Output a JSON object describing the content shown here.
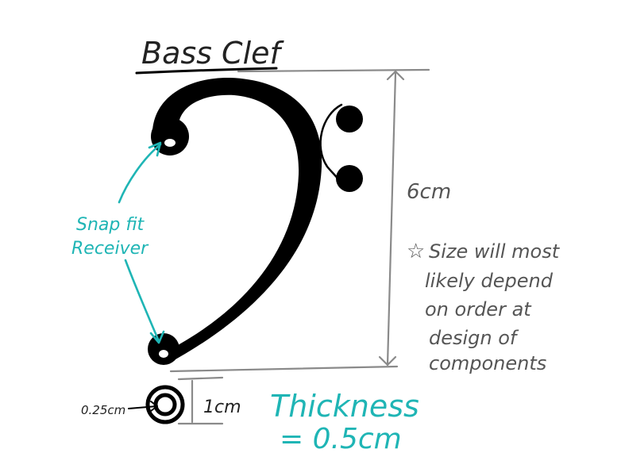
{
  "title": "Bass Clef",
  "dimensions": {
    "height_label": "6cm",
    "base_height_label": "1cm",
    "peg_diameter_label": "0.25cm"
  },
  "snap_fit_label": [
    "Snap fit",
    "Receiver"
  ],
  "size_note": [
    "Size will most",
    "likely depend",
    "on order at",
    "design of",
    "components"
  ],
  "thickness_label": [
    "Thickness",
    "= 0.5cm"
  ],
  "colors": {
    "ink": "#000000",
    "annotation": "#1fb5b5",
    "dimension_lines": "#8a8a8a",
    "note_text": "#555555"
  }
}
